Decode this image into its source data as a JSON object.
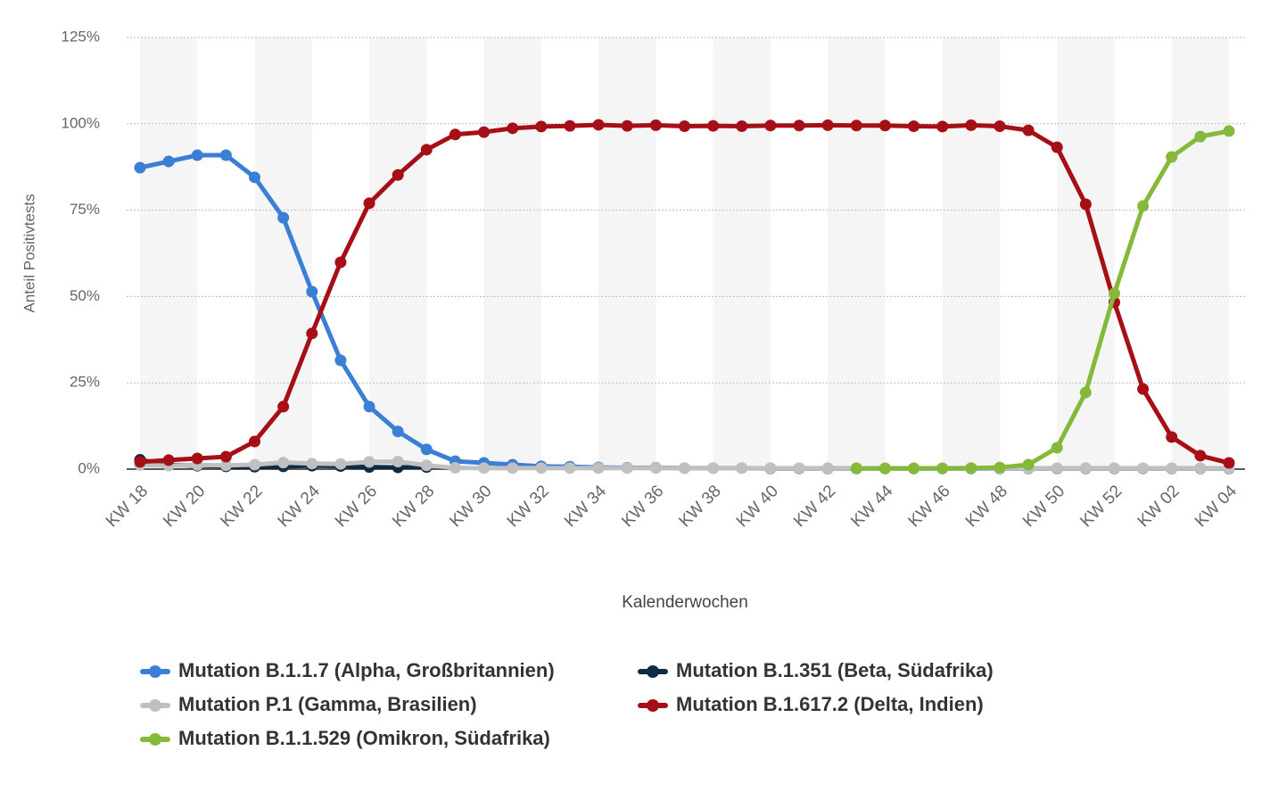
{
  "chart_data": {
    "type": "line",
    "x_label": "Kalenderwochen",
    "y_label": "Anteil Positivtests",
    "categories": [
      "KW 18",
      null,
      "KW 20",
      null,
      "KW 22",
      null,
      "KW 24",
      null,
      "KW 26",
      null,
      "KW 28",
      null,
      "KW 30",
      null,
      "KW 32",
      null,
      "KW 34",
      null,
      "KW 36",
      null,
      "KW 38",
      null,
      "KW 40",
      null,
      "KW 42",
      null,
      "KW 44",
      null,
      "KW 46",
      null,
      "KW 48",
      null,
      "KW 50",
      null,
      "KW 52",
      null,
      "KW 02",
      null,
      "KW 04"
    ],
    "ylim": [
      0,
      125
    ],
    "yticks": [
      {
        "value": 0,
        "label": "0%"
      },
      {
        "value": 25,
        "label": "25%"
      },
      {
        "value": 50,
        "label": "50%"
      },
      {
        "value": 75,
        "label": "75%"
      },
      {
        "value": 100,
        "label": "100%"
      },
      {
        "value": 125,
        "label": "125%"
      }
    ],
    "grid": true,
    "legend": "bottom",
    "series": [
      {
        "name": "Mutation B.1.1.7 (Alpha, Großbritannien)",
        "color": "#3a7fd5",
        "values": [
          87.3,
          89.1,
          90.9,
          90.9,
          84.5,
          72.8,
          51.4,
          31.5,
          18.1,
          10.9,
          5.7,
          2.3,
          1.8,
          1.3,
          0.8,
          0.7,
          0.5,
          0.4,
          0.4,
          0.3,
          0.3,
          0.3,
          0.2,
          0.2,
          0.2,
          0.2,
          0.2,
          0.2,
          0.2,
          0.2,
          0.2,
          0.2,
          0.2,
          0.2,
          0.2,
          0.2,
          0.2,
          0.2,
          0.2
        ]
      },
      {
        "name": "Mutation B.1.351 (Beta, Südafrika)",
        "color": "#0f2a44",
        "values": [
          2.7,
          1.2,
          1.0,
          0.8,
          0.7,
          0.8,
          1.0,
          0.9,
          0.6,
          0.5,
          0.6,
          null,
          null,
          null,
          null,
          null,
          null,
          null,
          null,
          null,
          null,
          null,
          null,
          null,
          null,
          null,
          null,
          null,
          null,
          null,
          null,
          null,
          null,
          null,
          null,
          null,
          null,
          null,
          null
        ]
      },
      {
        "name": "Mutation P.1 (Gamma, Brasilien)",
        "color": "#c0c0c0",
        "values": [
          1.2,
          1.0,
          1.2,
          1.1,
          1.3,
          1.9,
          1.6,
          1.5,
          2.1,
          2.2,
          1.1,
          0.4,
          0.3,
          0.3,
          0.3,
          0.3,
          0.3,
          0.3,
          0.3,
          0.3,
          0.3,
          0.3,
          0.3,
          0.3,
          0.3,
          0.3,
          0.3,
          0.3,
          0.3,
          0.3,
          0.3,
          0.3,
          0.3,
          0.3,
          0.3,
          0.3,
          0.3,
          0.3,
          0.3
        ]
      },
      {
        "name": "Mutation B.1.617.2 (Delta, Indien)",
        "color": "#a50f15",
        "values": [
          2.1,
          2.6,
          3.1,
          3.6,
          8.0,
          18.1,
          39.3,
          59.9,
          77.0,
          85.2,
          92.5,
          96.9,
          97.6,
          98.7,
          99.2,
          99.4,
          99.7,
          99.4,
          99.6,
          99.3,
          99.4,
          99.3,
          99.5,
          99.5,
          99.6,
          99.5,
          99.5,
          99.3,
          99.2,
          99.6,
          99.3,
          98.1,
          93.2,
          76.7,
          48.3,
          23.2,
          9.3,
          3.9,
          1.8
        ]
      },
      {
        "name": "Mutation B.1.1.529 (Omikron, Südafrika)",
        "color": "#84b93a",
        "values": [
          null,
          null,
          null,
          null,
          null,
          null,
          null,
          null,
          null,
          null,
          null,
          null,
          null,
          null,
          null,
          null,
          null,
          null,
          null,
          null,
          null,
          null,
          null,
          null,
          null,
          0.2,
          0.2,
          0.2,
          0.2,
          0.3,
          0.5,
          1.3,
          6.2,
          22.2,
          50.9,
          76.2,
          90.4,
          96.3,
          97.9
        ]
      }
    ]
  }
}
